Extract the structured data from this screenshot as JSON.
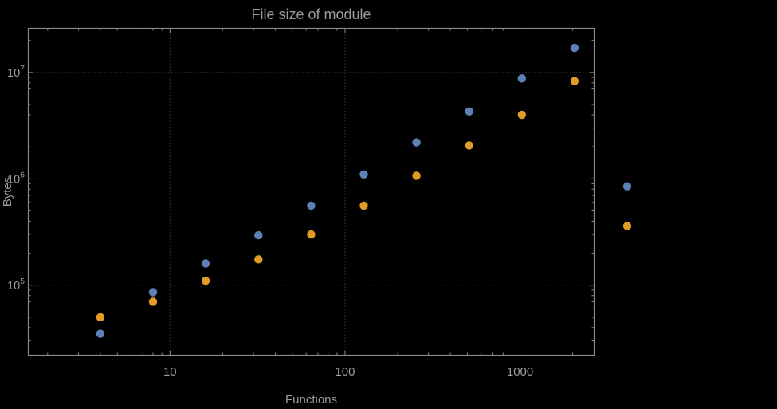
{
  "colors": {
    "background": "#000000",
    "text": "#9b9b9b",
    "frame": "#8c8c8c",
    "grid": "#5e5e5e",
    "series_blue": "#5e81b5",
    "series_orange": "#e19c24"
  },
  "chart_data": {
    "type": "scatter",
    "title": "File size of module",
    "xlabel": "Functions",
    "ylabel": "Bytes",
    "x_scale": "log",
    "y_scale": "log",
    "grid": "dotted",
    "legend": "none",
    "x_ticks": [
      10,
      100,
      1000
    ],
    "y_ticks": [
      100000,
      1000000,
      10000000
    ],
    "x_range": [
      1.55,
      2650
    ],
    "y_range": [
      22000,
      26000000
    ],
    "series": [
      {
        "name": "blue",
        "color": "#5e81b5",
        "points": [
          [
            4,
            35000
          ],
          [
            8,
            86000
          ],
          [
            16,
            160000
          ],
          [
            32,
            295000
          ],
          [
            64,
            560000
          ],
          [
            128,
            1100000
          ],
          [
            256,
            2200000
          ],
          [
            512,
            4300000
          ],
          [
            1024,
            8800000
          ],
          [
            2048,
            17000000
          ],
          [
            4096,
            850000
          ]
        ]
      },
      {
        "name": "orange",
        "color": "#e19c24",
        "points": [
          [
            4,
            50000
          ],
          [
            8,
            70000
          ],
          [
            16,
            110000
          ],
          [
            32,
            175000
          ],
          [
            64,
            300000
          ],
          [
            128,
            560000
          ],
          [
            256,
            1070000
          ],
          [
            512,
            2060000
          ],
          [
            1024,
            4000000
          ],
          [
            2048,
            8300000
          ],
          [
            4096,
            360000
          ]
        ]
      }
    ]
  }
}
